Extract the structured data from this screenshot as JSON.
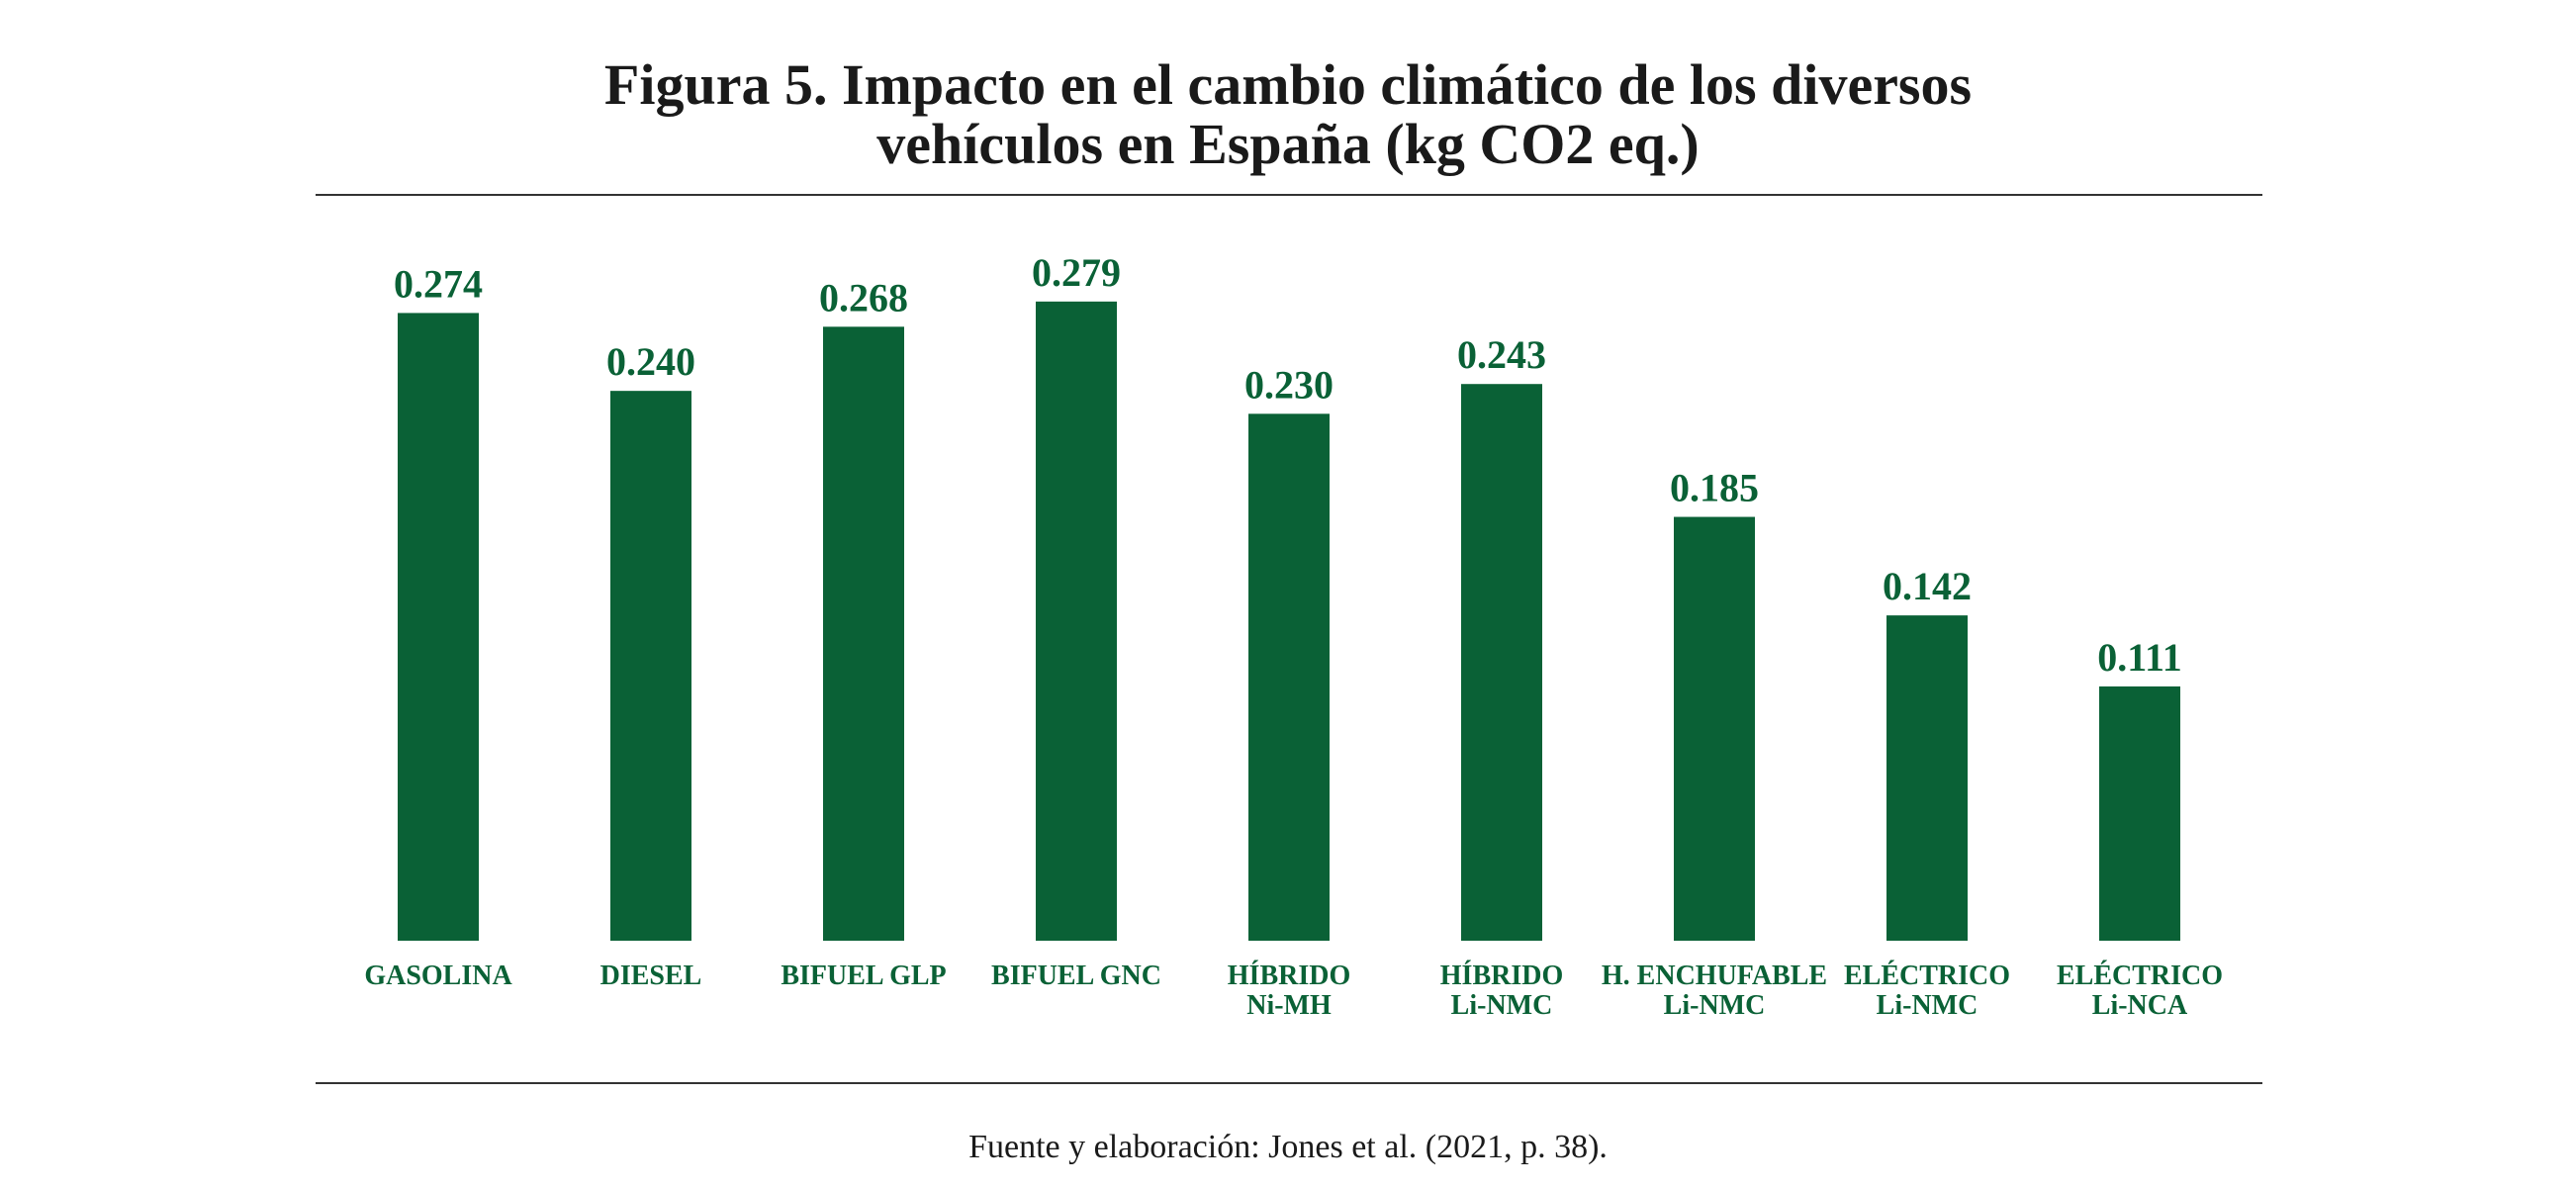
{
  "chart_data": {
    "type": "bar",
    "title": [
      "Figura 5. Impacto en el cambio climático de los diversos",
      "vehículos en España (kg CO2 eq.)"
    ],
    "categories": [
      "GASOLINA",
      "DIESEL",
      "BIFUEL GLP",
      "BIFUEL GNC",
      "HÍBRIDO\nNi-MH",
      "HÍBRIDO\nLi-NMC",
      "H. ENCHUFABLE\nLi-NMC",
      "ELÉCTRICO\nLi-NMC",
      "ELÉCTRICO\nLi-NCA"
    ],
    "values": [
      0.274,
      0.24,
      0.268,
      0.279,
      0.23,
      0.243,
      0.185,
      0.142,
      0.111
    ],
    "value_labels": [
      "0.274",
      "0.240",
      "0.268",
      "0.279",
      "0.230",
      "0.243",
      "0.185",
      "0.142",
      "0.111"
    ],
    "color": "#0a6136",
    "source": "Fuente y elaboración: Jones et al. (2021, p. 38)."
  }
}
